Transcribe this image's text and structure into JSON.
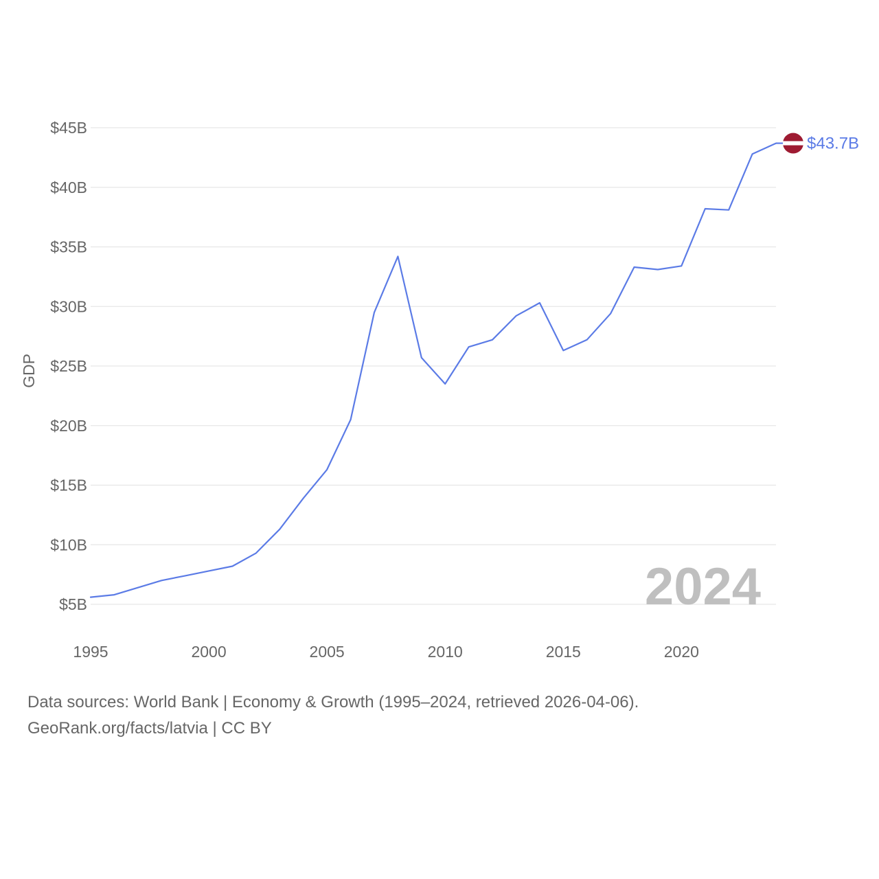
{
  "chart_data": {
    "type": "line",
    "title": "",
    "xlabel": "",
    "ylabel": "GDP",
    "xlim": [
      1995,
      2024
    ],
    "ylim": [
      5,
      45
    ],
    "x_ticks": [
      1995,
      2000,
      2005,
      2010,
      2015,
      2020
    ],
    "x_tick_labels": [
      "1995",
      "2000",
      "2005",
      "2010",
      "2015",
      "2020"
    ],
    "y_ticks": [
      5,
      10,
      15,
      20,
      25,
      30,
      35,
      40,
      45
    ],
    "y_tick_labels": [
      "$5B",
      "$10B",
      "$15B",
      "$20B",
      "$25B",
      "$30B",
      "$35B",
      "$40B",
      "$45B"
    ],
    "grid": true,
    "legend": "none",
    "series": [
      {
        "name": "Latvia",
        "color": "#5b7be6",
        "x": [
          1995,
          1996,
          1997,
          1998,
          1999,
          2000,
          2001,
          2002,
          2003,
          2004,
          2005,
          2006,
          2007,
          2008,
          2009,
          2010,
          2011,
          2012,
          2013,
          2014,
          2015,
          2016,
          2017,
          2018,
          2019,
          2020,
          2021,
          2022,
          2023,
          2024
        ],
        "values": [
          5.6,
          5.8,
          6.4,
          7.0,
          7.4,
          7.8,
          8.2,
          9.3,
          11.3,
          13.9,
          16.3,
          20.5,
          29.5,
          34.2,
          25.7,
          23.5,
          26.6,
          27.2,
          29.2,
          30.3,
          26.3,
          27.2,
          29.4,
          33.3,
          33.1,
          33.4,
          38.2,
          38.1,
          42.8,
          43.7
        ]
      }
    ],
    "end_label": "$43.7B",
    "end_marker_icon": "latvia-flag-icon",
    "flag_colors": {
      "primary": "#9e1b32",
      "secondary": "#ffffff"
    },
    "current_year_label": "2024",
    "annotations": [
      "2024",
      "$43.7B"
    ]
  },
  "footer": {
    "sources_line": "Data sources: World Bank | Economy & Growth (1995–2024, retrieved 2026-04-06).",
    "credit_line": "GeoRank.org/facts/latvia | CC BY"
  }
}
